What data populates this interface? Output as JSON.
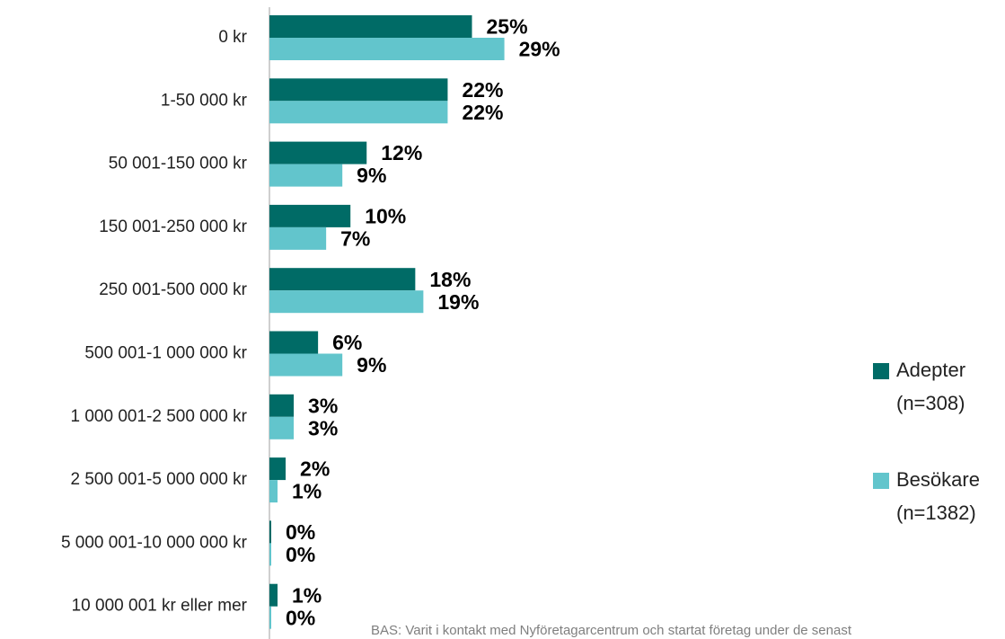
{
  "chart_data": {
    "type": "hbar",
    "categories": [
      "0 kr",
      "1-50 000 kr",
      "50 001-150 000 kr",
      "150 001-250 000 kr",
      "250 001-500 000 kr",
      "500 001-1 000 000 kr",
      "1 000 001-2 500 000 kr",
      "2 500 001-5 000 000 kr",
      "5 000 001-10 000 000 kr",
      "10 000 001 kr eller mer"
    ],
    "series": [
      {
        "name": "Adepter (n=308)",
        "color": "#006b66",
        "values": [
          25,
          22,
          12,
          10,
          18,
          6,
          3,
          2,
          0,
          1
        ],
        "value_labels": [
          "25%",
          "22%",
          "12%",
          "10%",
          "18%",
          "6%",
          "3%",
          "2%",
          "0%",
          "1%"
        ]
      },
      {
        "name": "Besökare (n=1382)",
        "color": "#62c5cc",
        "values": [
          29,
          22,
          9,
          7,
          19,
          9,
          3,
          1,
          0,
          0
        ],
        "value_labels": [
          "29%",
          "22%",
          "9%",
          "7%",
          "19%",
          "9%",
          "3%",
          "1%",
          "0%",
          "0%"
        ]
      }
    ],
    "footnote": "BAS: Varit i kontakt med Nyföretagarcentrum och startat företag under de senast"
  }
}
